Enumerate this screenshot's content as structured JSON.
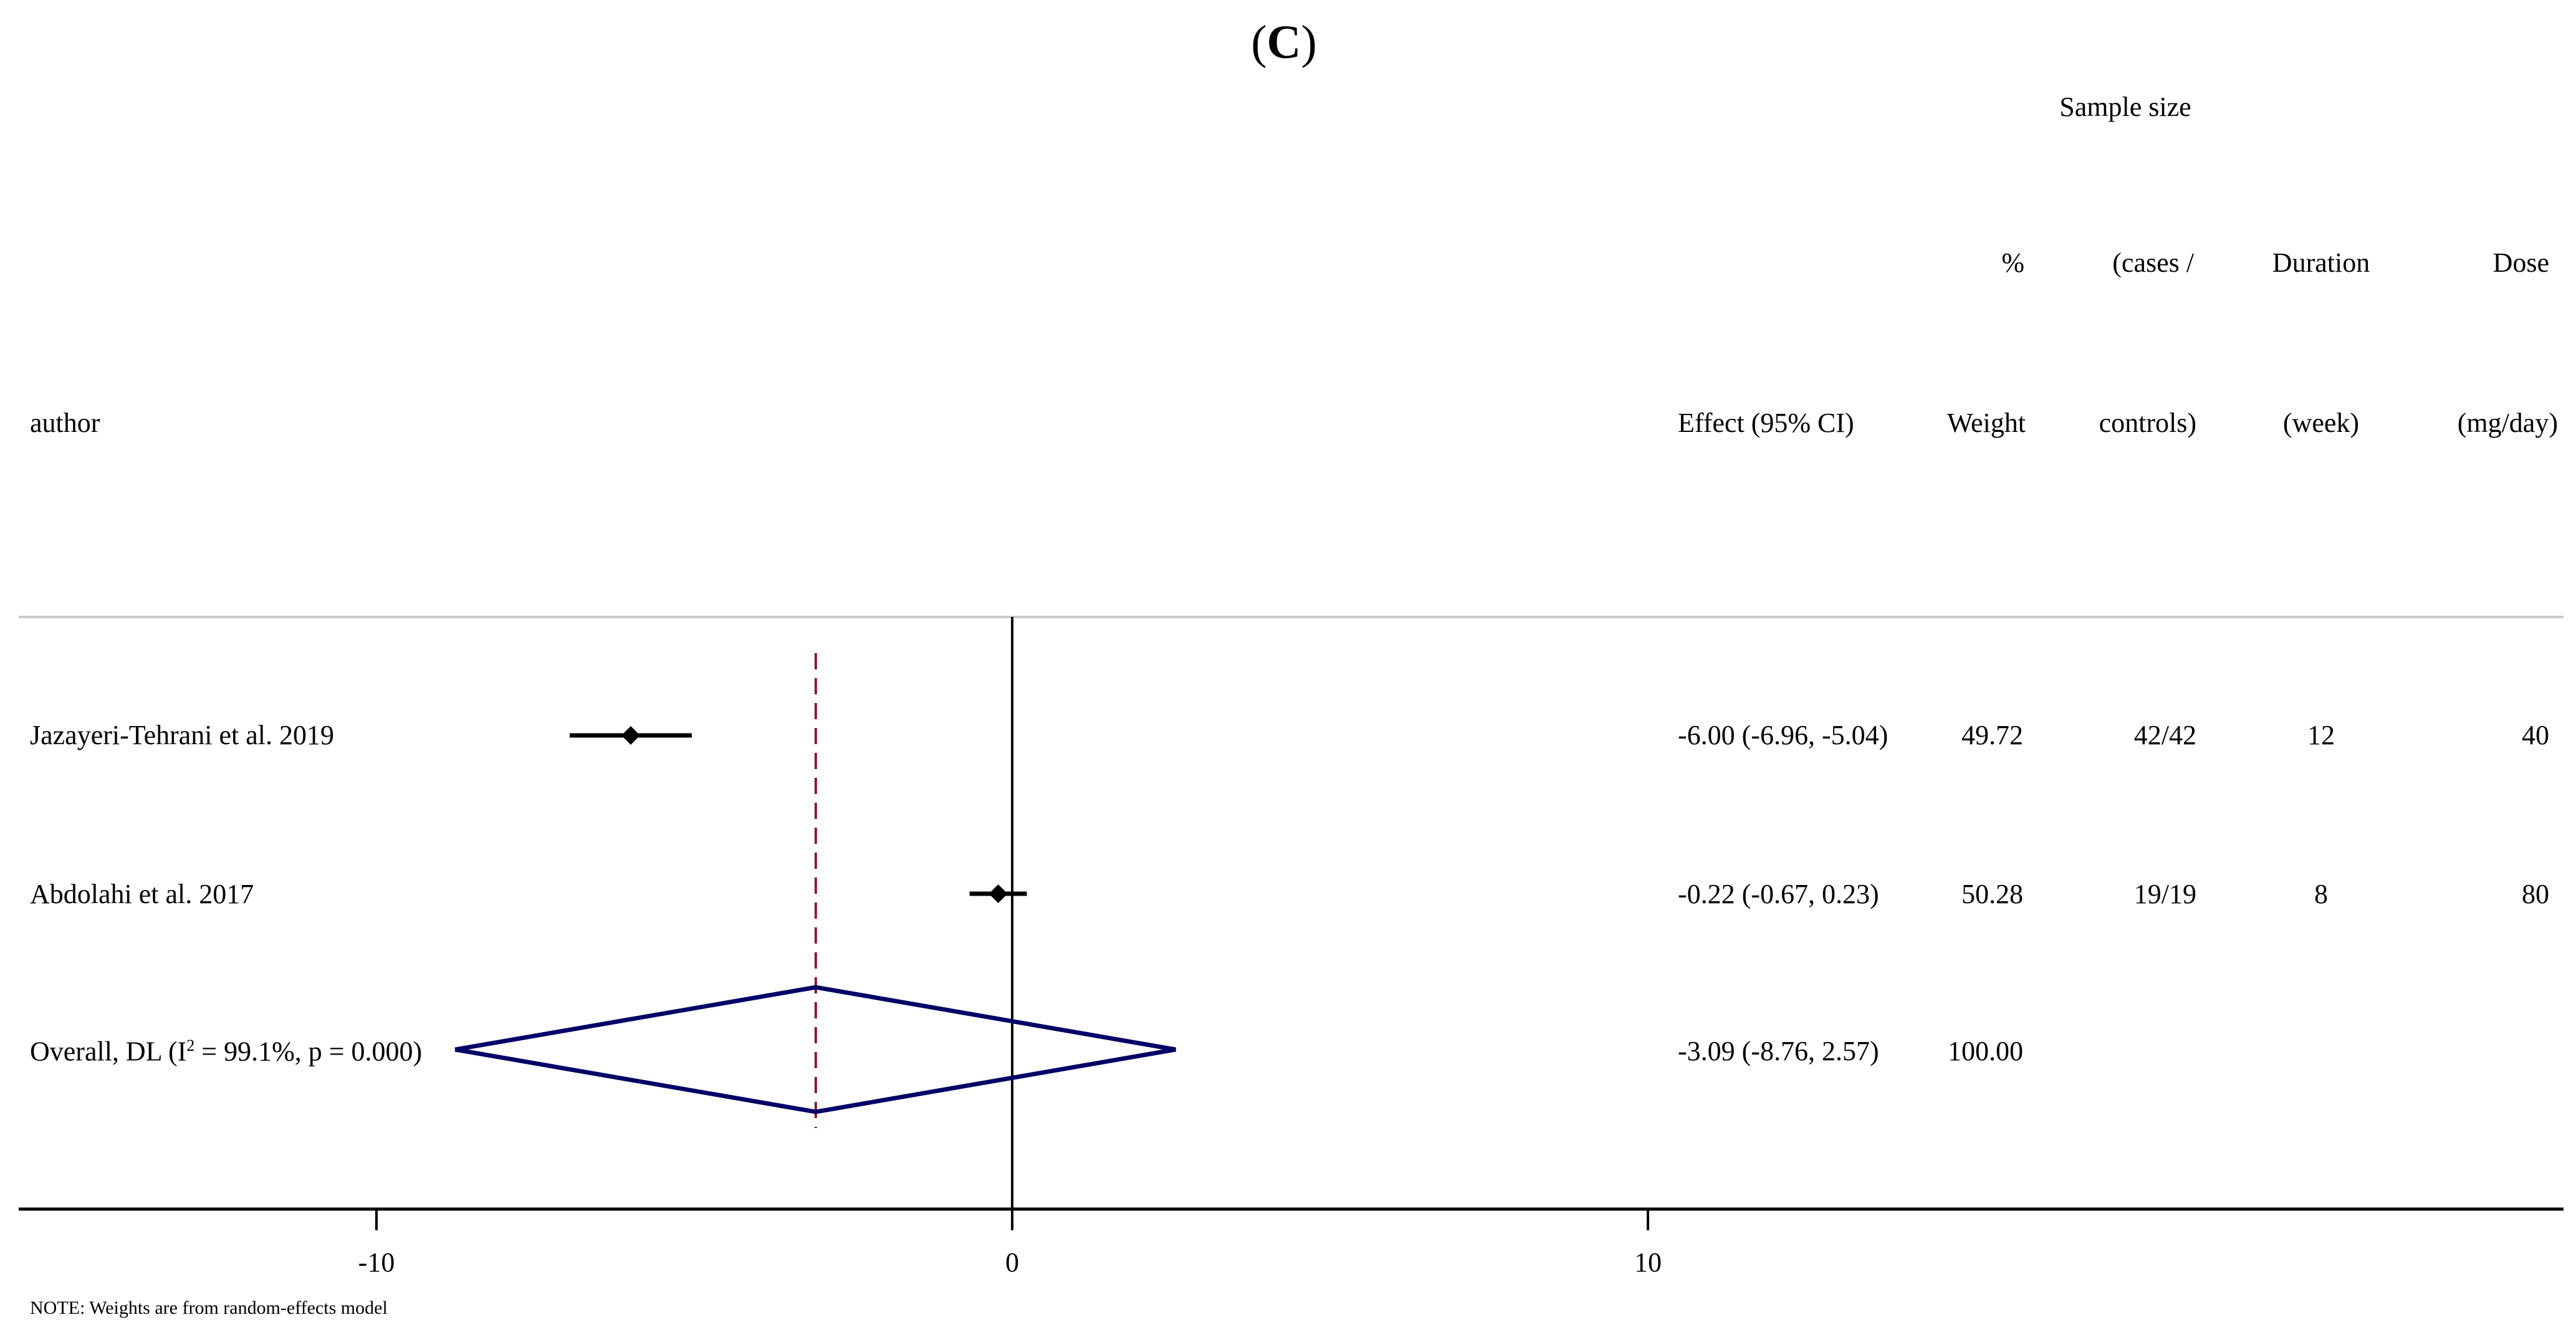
{
  "chart_data": {
    "type": "forest",
    "title": "(C)",
    "note": "NOTE: Weights are from random-effects model",
    "columns": {
      "author": "author",
      "effect": "Effect (95% CI)",
      "weight": [
        "%",
        "Weight"
      ],
      "sample": [
        "Sample size",
        "(cases /",
        "controls)"
      ],
      "duration": [
        "Duration",
        "(week)"
      ],
      "dose": [
        "Dose",
        "(mg/day)"
      ]
    },
    "studies": [
      {
        "author": "Jazayeri-Tehrani et al. 2019",
        "effect": -6.0,
        "lower": -6.96,
        "upper": -5.04,
        "effect_text": "-6.00 (-6.96, -5.04)",
        "weight": "49.72",
        "sample": "42/42",
        "duration": "12",
        "dose": "40"
      },
      {
        "author": "Abdolahi et al. 2017",
        "effect": -0.22,
        "lower": -0.67,
        "upper": 0.23,
        "effect_text": "-0.22 (-0.67, 0.23)",
        "weight": "50.28",
        "sample": "19/19",
        "duration": "8",
        "dose": "80"
      }
    ],
    "overall": {
      "label_prefix": "Overall, DL (I",
      "label_sup": "2",
      "label_suffix": " = 99.1%, p = 0.000)",
      "effect": -3.09,
      "lower": -8.76,
      "upper": 2.57,
      "effect_text": "-3.09 (-8.76, 2.57)",
      "weight": "100.00"
    },
    "xaxis": {
      "ticks": [
        -10,
        0,
        10
      ],
      "tick_labels": [
        "-10",
        "0",
        "10"
      ],
      "range": [
        -15.7,
        24.2
      ]
    },
    "colors": {
      "study": "#000000",
      "diamond": "#000066",
      "overall_line": "#8b1a2a",
      "null_line": "#000000",
      "rule": "#c8c8c8"
    }
  }
}
